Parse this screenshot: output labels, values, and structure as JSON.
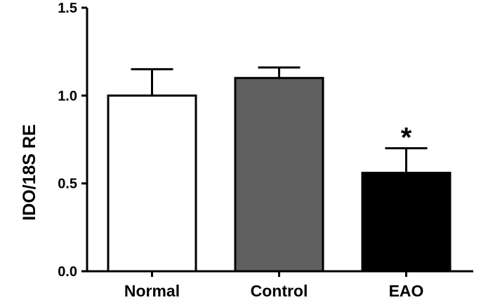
{
  "chart_data": {
    "type": "bar",
    "categories": [
      "Normal",
      "Control",
      "EAO"
    ],
    "values": [
      1.0,
      1.1,
      0.56
    ],
    "error_plus": [
      0.15,
      0.06,
      0.14
    ],
    "bar_colors": [
      "#ffffff",
      "#5f5f5f",
      "#000000"
    ],
    "bar_stroke": "#000000",
    "title": "",
    "xlabel": "",
    "ylabel": "IDO/18S RE",
    "ylim": [
      0,
      1.5
    ],
    "yticks": [
      0.0,
      0.5,
      1.0,
      1.5
    ],
    "ytick_labels": [
      "0.0",
      "0.5",
      "1.0",
      "1.5"
    ],
    "annotations": [
      {
        "category": "EAO",
        "text": "*"
      }
    ],
    "grid": false,
    "legend": "none"
  }
}
